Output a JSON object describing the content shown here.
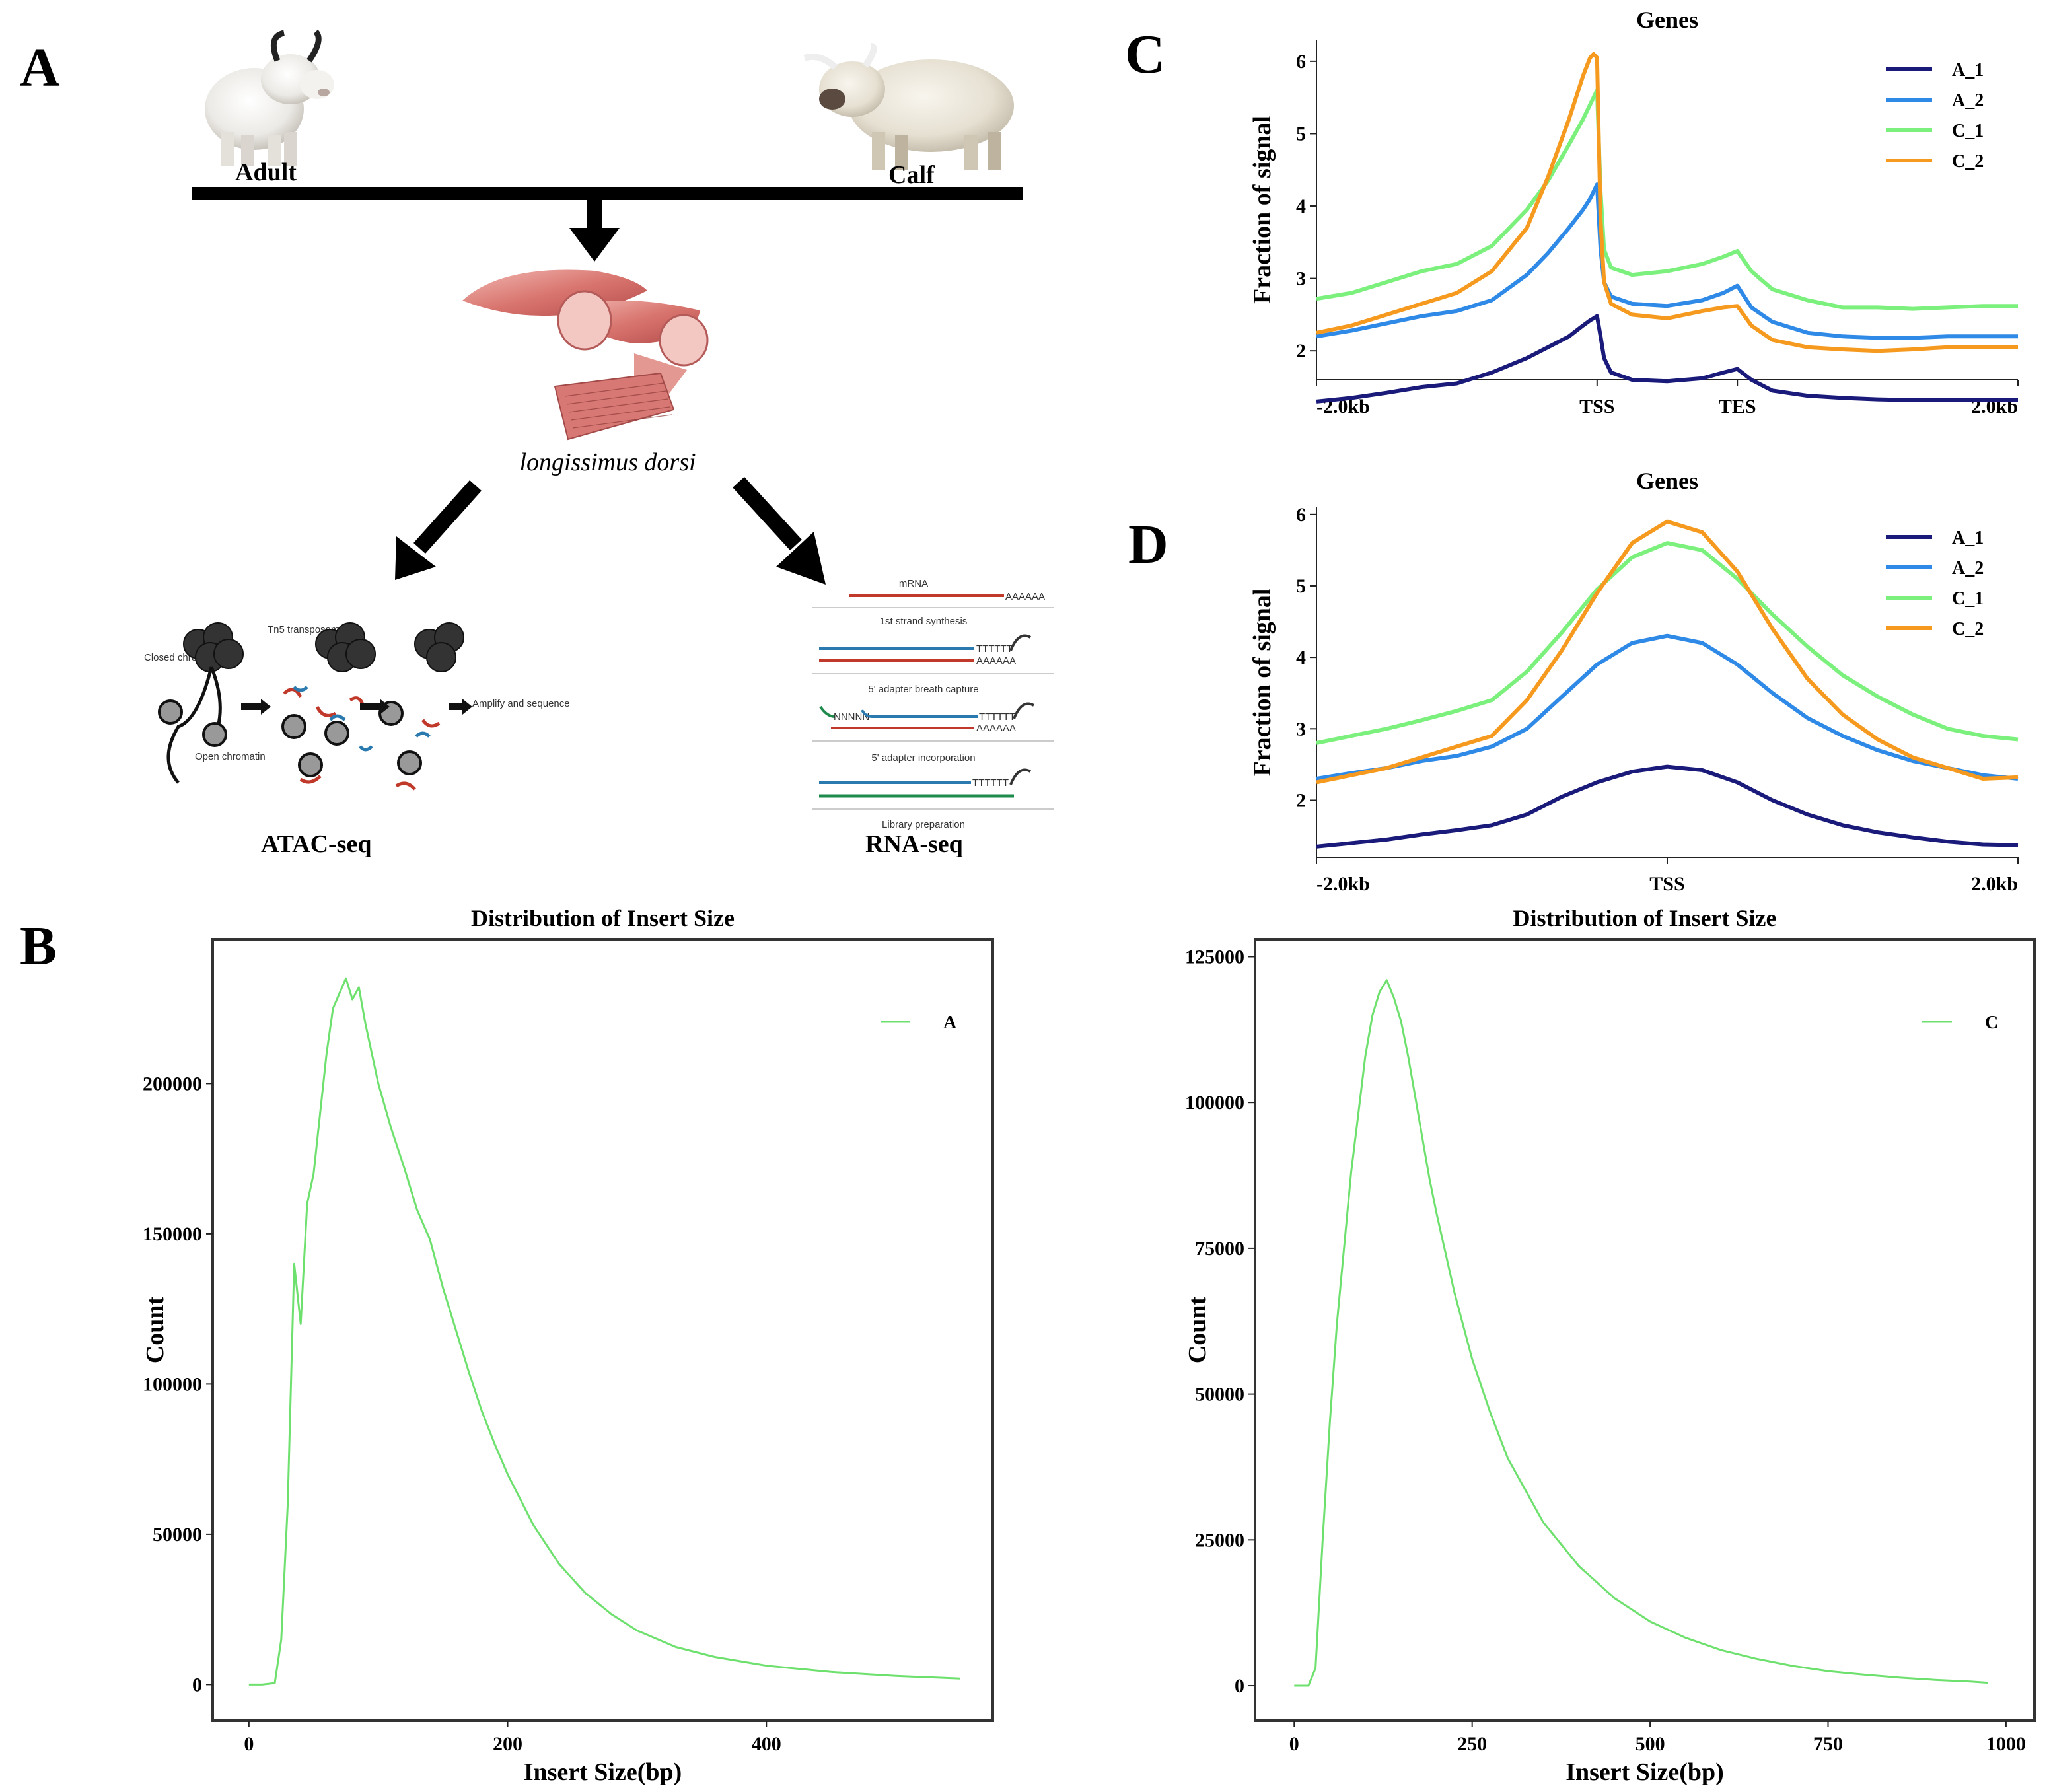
{
  "panel_labels": {
    "a": "A",
    "b": "B",
    "c": "C",
    "d": "D"
  },
  "panel_a": {
    "adult_label": "Adult",
    "calf_label": "Calf",
    "tissue_label": "longissimus dorsi",
    "atac_label": "ATAC-seq",
    "rna_label": "RNA-seq",
    "atac_diagram": {
      "closed": "Closed chromatin",
      "tn5": "Tn5 transposome",
      "open": "Open chromatin",
      "amplify": "Amplify and sequence"
    },
    "rna_diagram": {
      "step1": "mRNA",
      "step2": "1st strand synthesis",
      "step3": "5' adapter breath capture",
      "step4": "5' adapter incorporation",
      "step5": "Library preparation",
      "polyA": "AAAAAA",
      "polyT": "TTTTTT",
      "nnn": "NNNNN"
    }
  },
  "colors": {
    "A_1": "#1a1a7a",
    "A_2": "#2e8ae6",
    "C_1": "#7cf07c",
    "C_2": "#f59a1e",
    "insert": "#6ee06e"
  },
  "chart_data": [
    {
      "id": "C",
      "type": "line",
      "title": "Genes",
      "xlabel": "",
      "ylabel": "Fraction of signal",
      "x_ticks": [
        "-2.0kb",
        "TSS",
        "TES",
        "2.0kb"
      ],
      "x_tick_positions": [
        0,
        0.4,
        0.6,
        1.0
      ],
      "xlim": [
        0,
        1
      ],
      "ylim": [
        1.6,
        6.3
      ],
      "y_ticks": [
        2,
        3,
        4,
        5,
        6
      ],
      "legend": [
        "A_1",
        "A_2",
        "C_1",
        "C_2"
      ],
      "x": [
        0.0,
        0.05,
        0.1,
        0.15,
        0.2,
        0.25,
        0.3,
        0.33,
        0.36,
        0.38,
        0.39,
        0.395,
        0.4,
        0.405,
        0.41,
        0.42,
        0.45,
        0.5,
        0.55,
        0.58,
        0.6,
        0.62,
        0.65,
        0.7,
        0.75,
        0.8,
        0.85,
        0.9,
        0.95,
        1.0
      ],
      "series": [
        {
          "name": "A_1",
          "values": [
            1.3,
            1.35,
            1.42,
            1.5,
            1.55,
            1.7,
            1.9,
            2.05,
            2.2,
            2.35,
            2.42,
            2.45,
            2.48,
            2.2,
            1.9,
            1.7,
            1.6,
            1.58,
            1.62,
            1.7,
            1.75,
            1.6,
            1.45,
            1.38,
            1.35,
            1.33,
            1.32,
            1.32,
            1.32,
            1.32
          ]
        },
        {
          "name": "A_2",
          "values": [
            2.2,
            2.28,
            2.38,
            2.48,
            2.55,
            2.7,
            3.05,
            3.35,
            3.7,
            3.95,
            4.1,
            4.2,
            4.3,
            3.4,
            2.95,
            2.75,
            2.65,
            2.62,
            2.7,
            2.8,
            2.9,
            2.6,
            2.4,
            2.25,
            2.2,
            2.18,
            2.18,
            2.2,
            2.2,
            2.2
          ]
        },
        {
          "name": "C_1",
          "values": [
            2.72,
            2.8,
            2.95,
            3.1,
            3.2,
            3.45,
            3.95,
            4.35,
            4.85,
            5.2,
            5.4,
            5.5,
            5.6,
            4.2,
            3.4,
            3.15,
            3.05,
            3.1,
            3.2,
            3.3,
            3.38,
            3.1,
            2.85,
            2.7,
            2.6,
            2.6,
            2.58,
            2.6,
            2.62,
            2.62
          ]
        },
        {
          "name": "C_2",
          "values": [
            2.25,
            2.35,
            2.5,
            2.65,
            2.8,
            3.1,
            3.7,
            4.4,
            5.2,
            5.8,
            6.05,
            6.1,
            6.05,
            3.8,
            2.95,
            2.65,
            2.5,
            2.45,
            2.55,
            2.6,
            2.62,
            2.35,
            2.15,
            2.05,
            2.02,
            2.0,
            2.02,
            2.05,
            2.05,
            2.05
          ]
        }
      ]
    },
    {
      "id": "D",
      "type": "line",
      "title": "Genes",
      "xlabel": "",
      "ylabel": "Fraction of signal",
      "x_ticks": [
        "-2.0kb",
        "TSS",
        "2.0kb"
      ],
      "x_tick_positions": [
        0,
        0.5,
        1.0
      ],
      "xlim": [
        0,
        1
      ],
      "ylim": [
        1.2,
        6.1
      ],
      "y_ticks": [
        2,
        3,
        4,
        5,
        6
      ],
      "legend": [
        "A_1",
        "A_2",
        "C_1",
        "C_2"
      ],
      "x": [
        0.0,
        0.05,
        0.1,
        0.15,
        0.2,
        0.25,
        0.3,
        0.35,
        0.4,
        0.45,
        0.5,
        0.55,
        0.6,
        0.65,
        0.7,
        0.75,
        0.8,
        0.85,
        0.9,
        0.95,
        1.0
      ],
      "series": [
        {
          "name": "A_1",
          "values": [
            1.35,
            1.4,
            1.45,
            1.52,
            1.58,
            1.65,
            1.8,
            2.05,
            2.25,
            2.4,
            2.47,
            2.42,
            2.25,
            2.0,
            1.8,
            1.65,
            1.55,
            1.48,
            1.42,
            1.38,
            1.37
          ]
        },
        {
          "name": "A_2",
          "values": [
            2.3,
            2.38,
            2.45,
            2.55,
            2.62,
            2.75,
            3.0,
            3.45,
            3.9,
            4.2,
            4.3,
            4.2,
            3.9,
            3.5,
            3.15,
            2.9,
            2.7,
            2.55,
            2.45,
            2.35,
            2.3
          ]
        },
        {
          "name": "C_1",
          "values": [
            2.8,
            2.9,
            3.0,
            3.12,
            3.25,
            3.4,
            3.8,
            4.35,
            4.95,
            5.4,
            5.6,
            5.5,
            5.1,
            4.6,
            4.15,
            3.75,
            3.45,
            3.2,
            3.0,
            2.9,
            2.85
          ]
        },
        {
          "name": "C_2",
          "values": [
            2.25,
            2.35,
            2.45,
            2.6,
            2.75,
            2.9,
            3.4,
            4.1,
            4.9,
            5.6,
            5.9,
            5.75,
            5.2,
            4.4,
            3.7,
            3.2,
            2.85,
            2.6,
            2.45,
            2.3,
            2.32
          ]
        }
      ]
    },
    {
      "id": "B_A",
      "type": "line",
      "title": "Distribution of Insert Size",
      "xlabel": "Insert Size(bp)",
      "ylabel": "Count",
      "xlim": [
        -28,
        575
      ],
      "ylim": [
        -12000,
        248000
      ],
      "x_ticks": [
        0,
        200,
        400
      ],
      "y_ticks": [
        0,
        50000,
        100000,
        150000,
        200000
      ],
      "legend": [
        "A"
      ],
      "x": [
        0,
        10,
        20,
        25,
        30,
        35,
        40,
        45,
        50,
        55,
        60,
        65,
        70,
        75,
        80,
        85,
        90,
        95,
        100,
        110,
        120,
        130,
        140,
        150,
        160,
        170,
        180,
        190,
        200,
        220,
        240,
        260,
        280,
        300,
        330,
        360,
        400,
        450,
        500,
        550
      ],
      "series": [
        {
          "name": "A",
          "values": [
            0,
            0,
            500,
            15000,
            60000,
            140000,
            120000,
            160000,
            170000,
            190000,
            210000,
            225000,
            230000,
            235000,
            228000,
            232000,
            220000,
            210000,
            200000,
            185000,
            172000,
            158000,
            148000,
            132000,
            118000,
            104000,
            91000,
            80000,
            70000,
            53000,
            40000,
            30500,
            23500,
            18000,
            12500,
            9200,
            6300,
            4200,
            2900,
            2000
          ]
        }
      ]
    },
    {
      "id": "B_C",
      "type": "line",
      "title": "Distribution of Insert Size",
      "xlabel": "Insert Size(bp)",
      "ylabel": "Count",
      "xlim": [
        -55,
        1040
      ],
      "ylim": [
        -6000,
        128000
      ],
      "x_ticks": [
        0,
        250,
        500,
        750,
        1000
      ],
      "y_ticks": [
        0,
        25000,
        50000,
        75000,
        100000,
        125000
      ],
      "legend": [
        "C"
      ],
      "x": [
        0,
        20,
        30,
        40,
        50,
        60,
        70,
        80,
        90,
        100,
        110,
        120,
        130,
        140,
        150,
        160,
        170,
        180,
        190,
        200,
        225,
        250,
        275,
        300,
        350,
        400,
        450,
        500,
        550,
        600,
        650,
        700,
        750,
        800,
        850,
        900,
        950,
        975
      ],
      "series": [
        {
          "name": "C",
          "values": [
            0,
            0,
            3000,
            25000,
            45000,
            62000,
            75000,
            88000,
            98000,
            108000,
            115000,
            119000,
            121000,
            118000,
            114000,
            108000,
            101000,
            94000,
            87000,
            81000,
            67500,
            56000,
            47000,
            39000,
            28000,
            20500,
            15000,
            11000,
            8200,
            6100,
            4600,
            3400,
            2500,
            1900,
            1400,
            1000,
            700,
            500
          ]
        }
      ]
    }
  ]
}
